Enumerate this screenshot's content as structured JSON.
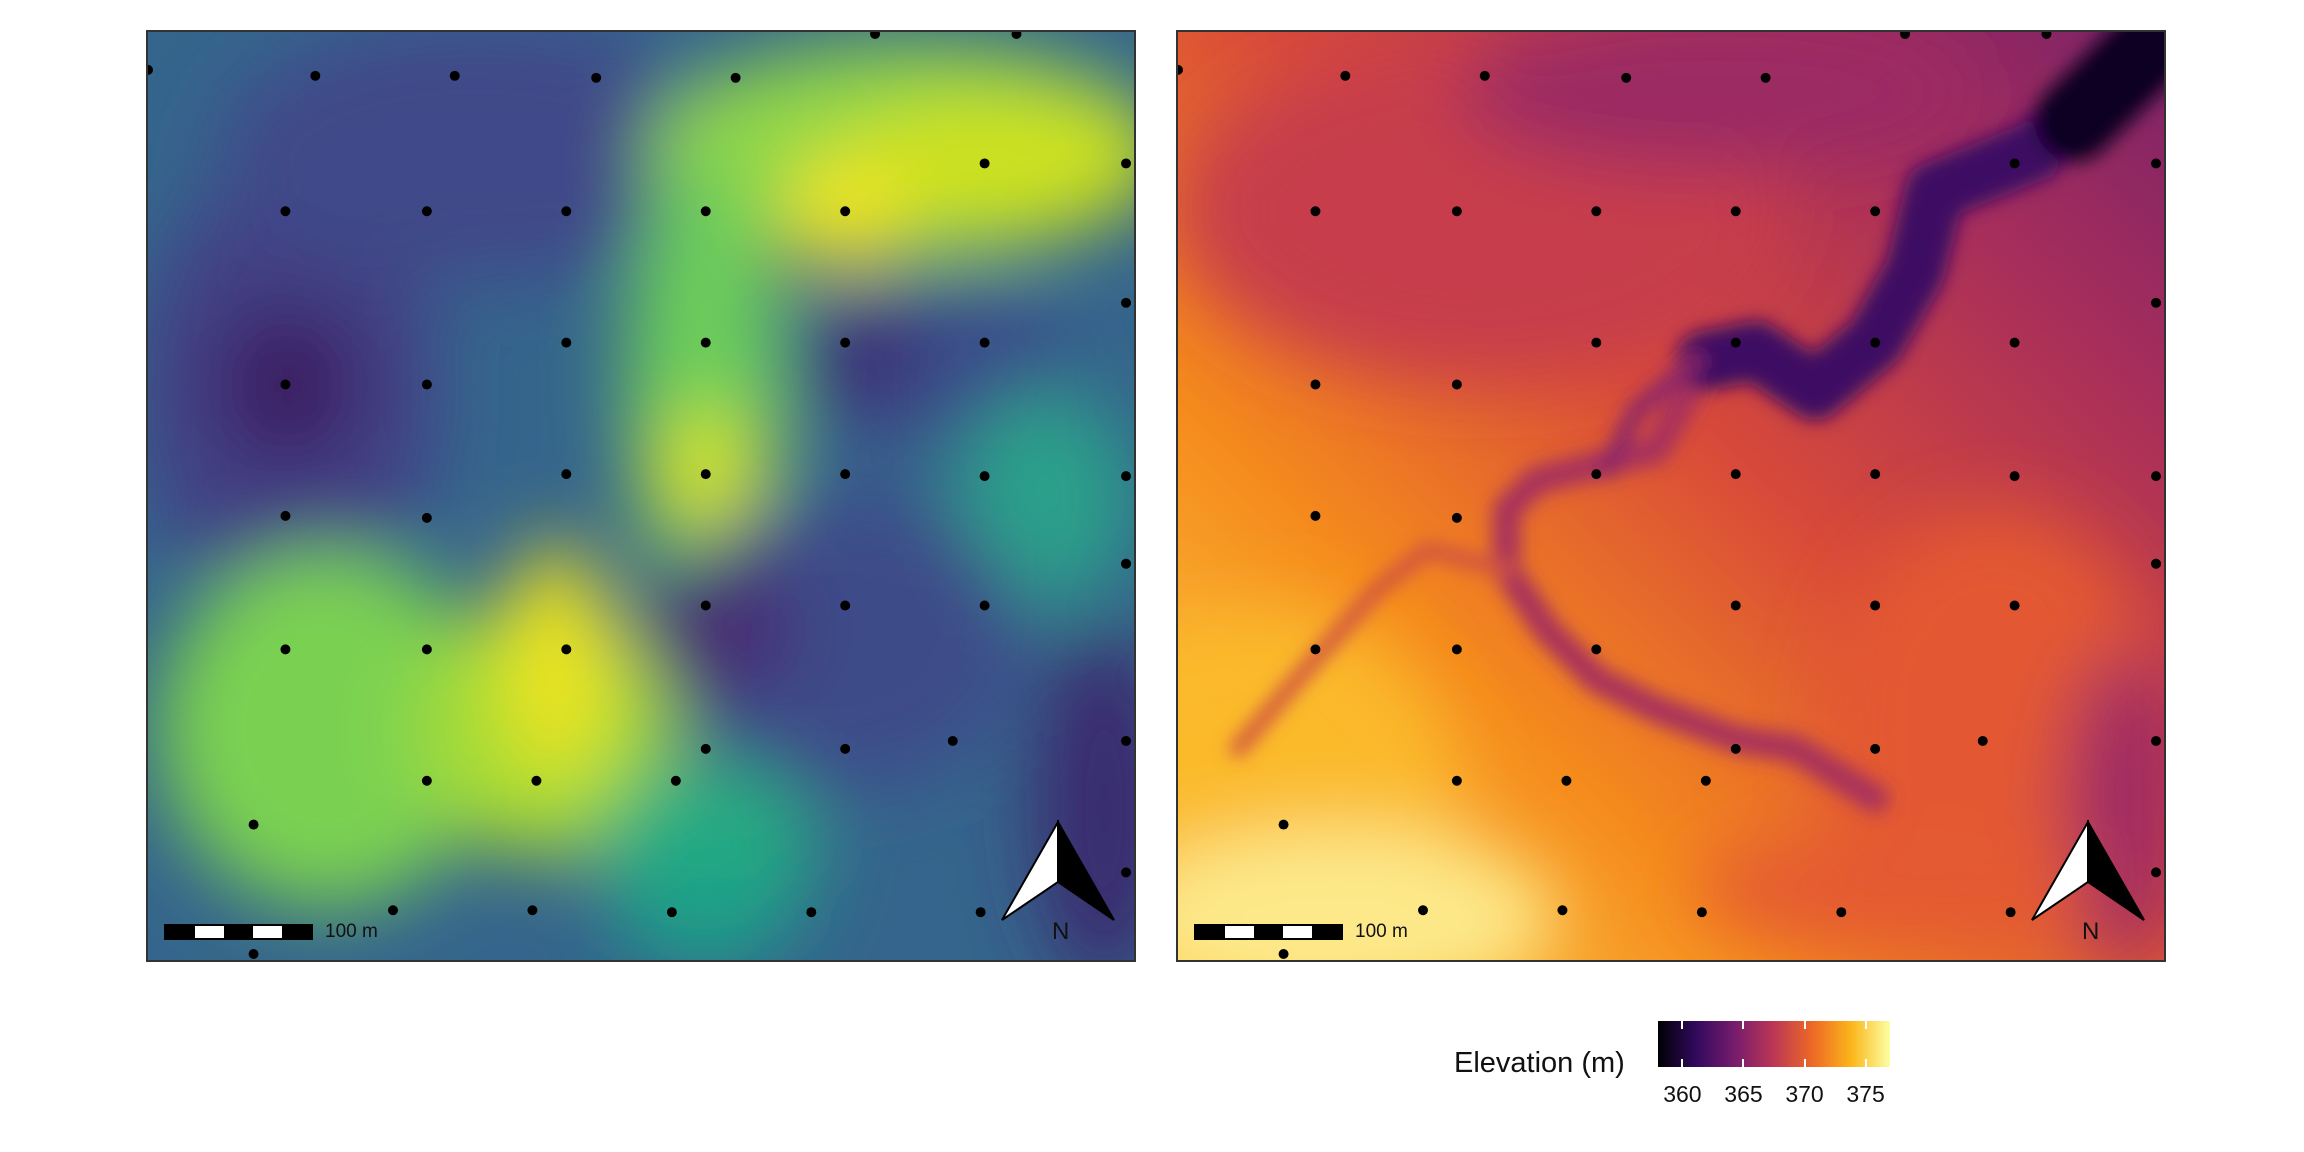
{
  "panels": [
    {
      "id": "left",
      "colormap": "viridis",
      "scale_bar_label": "100 m",
      "north_label": "N",
      "icons": [
        "north-arrow-icon",
        "scale-bar"
      ]
    },
    {
      "id": "right",
      "colormap": "inferno",
      "scale_bar_label": "100 m",
      "north_label": "N",
      "icons": [
        "north-arrow-icon",
        "scale-bar"
      ]
    }
  ],
  "legend": {
    "title": "Elevation (m)",
    "ticks": [
      "360",
      "365",
      "370",
      "375"
    ],
    "range": [
      358,
      377
    ]
  },
  "colors": {
    "points": "#000000",
    "frame": "#333333"
  }
}
